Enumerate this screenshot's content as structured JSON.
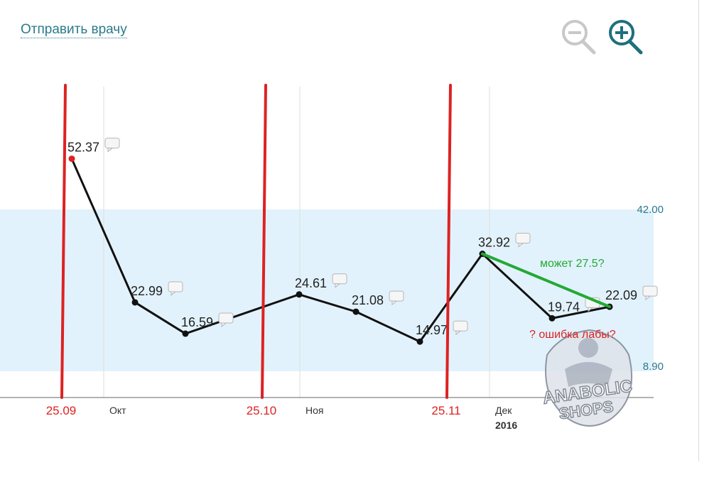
{
  "header": {
    "send_link": "Отправить врачу",
    "zoom_out_icon": "zoom-out-icon",
    "zoom_in_icon": "zoom-in-icon"
  },
  "chart_data": {
    "type": "line",
    "title": "",
    "xlabel": "",
    "ylabel": "",
    "x_ticks": [
      {
        "label": "Окт",
        "sub": ""
      },
      {
        "label": "Ноя",
        "sub": ""
      },
      {
        "label": "Дек",
        "sub": "2016"
      }
    ],
    "reference_range": {
      "low": 8.9,
      "high": 42.0,
      "low_label": "8.90",
      "high_label": "42.00"
    },
    "series": [
      {
        "points": [
          {
            "value": 52.37,
            "label": "52.37",
            "highlight": true
          },
          {
            "value": 22.99,
            "label": "22.99"
          },
          {
            "value": 16.59,
            "label": "16.59"
          },
          {
            "value": 24.61,
            "label": "24.61"
          },
          {
            "value": 21.08,
            "label": "21.08"
          },
          {
            "value": 14.97,
            "label": "14.97"
          },
          {
            "value": 32.92,
            "label": "32.92"
          },
          {
            "value": 19.74,
            "label": "19.74"
          },
          {
            "value": 22.09,
            "label": "22.09"
          }
        ]
      }
    ],
    "annotations": {
      "red_dates": [
        "25.09",
        "25.10",
        "25.11"
      ],
      "green_line": {
        "from_index": 6,
        "to_index": 8,
        "label": "может 27.5?"
      },
      "question": "? ошибка лабы?"
    },
    "colors": {
      "line": "#111111",
      "band": "#e2f2fc",
      "annotation_red": "#dd2222",
      "annotation_green": "#22aa33",
      "axis": "#999999",
      "gridline": "#dddddd"
    }
  },
  "watermark": {
    "text_top": "ANABOLIC",
    "text_bottom": "SHOPS"
  }
}
